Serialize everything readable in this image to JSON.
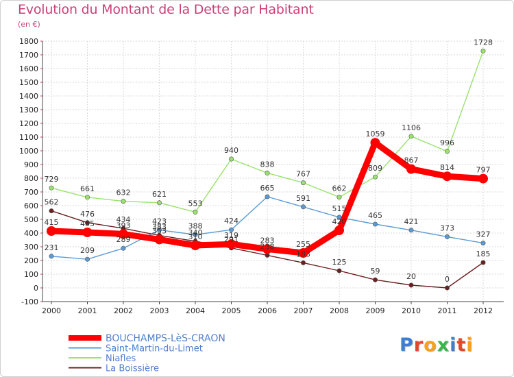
{
  "title": "Evolution du Montant de la Dette par Habitant",
  "subtitle": "(en €)",
  "logo": {
    "text": "Proxiti"
  },
  "chart_data": {
    "type": "line",
    "title": "Evolution du Montant de la Dette par Habitant",
    "subtitle": "(en €)",
    "x": [
      "2000",
      "2001",
      "2002",
      "2003",
      "2004",
      "2005",
      "2006",
      "2007",
      "2008",
      "2009",
      "2010",
      "2011",
      "2012"
    ],
    "ylim": [
      -100,
      1800
    ],
    "yticks": [
      -100,
      0,
      100,
      200,
      300,
      400,
      500,
      600,
      700,
      800,
      900,
      1000,
      1100,
      1200,
      1300,
      1400,
      1500,
      1600,
      1700,
      1800
    ],
    "grid": true,
    "legend_position": "bottom-left",
    "series": [
      {
        "name": "BOUCHAMPS-LèS-CRAON",
        "color": "#ff0000",
        "highlight": true,
        "values": [
          415,
          405,
          393,
          353,
          310,
          319,
          283,
          255,
          420,
          1059,
          867,
          814,
          797
        ],
        "labels": [
          "415",
          "405",
          "393",
          "353",
          "310",
          "319",
          "283",
          "255",
          "420",
          "1059",
          "867",
          "814",
          "797"
        ]
      },
      {
        "name": "Saint-Martin-du-Limet",
        "color": "#5b9bd5",
        "values": [
          231,
          209,
          289,
          423,
          388,
          424,
          665,
          591,
          515,
          465,
          421,
          373,
          327
        ],
        "labels": [
          "231",
          "209",
          "289",
          "423",
          "388",
          "424",
          "665",
          "591",
          "515",
          "465",
          "421",
          "373",
          "327"
        ]
      },
      {
        "name": "Niafles",
        "color": "#99e26b",
        "values": [
          729,
          661,
          632,
          621,
          553,
          940,
          838,
          767,
          662,
          809,
          1106,
          996,
          1728
        ],
        "labels": [
          "729",
          "661",
          "632",
          "621",
          "553",
          "940",
          "838",
          "767",
          "662",
          "809",
          "1106",
          "996",
          "1728"
        ]
      },
      {
        "name": "La Boissière",
        "color": "#6b1f1f",
        "values": [
          562,
          476,
          434,
          383,
          340,
          291,
          238,
          183,
          125,
          59,
          20,
          0,
          185
        ],
        "labels": [
          "562",
          "476",
          "434",
          "383",
          "340",
          "291",
          "238",
          "183",
          "125",
          "59",
          "20",
          "0",
          "185"
        ]
      }
    ]
  }
}
